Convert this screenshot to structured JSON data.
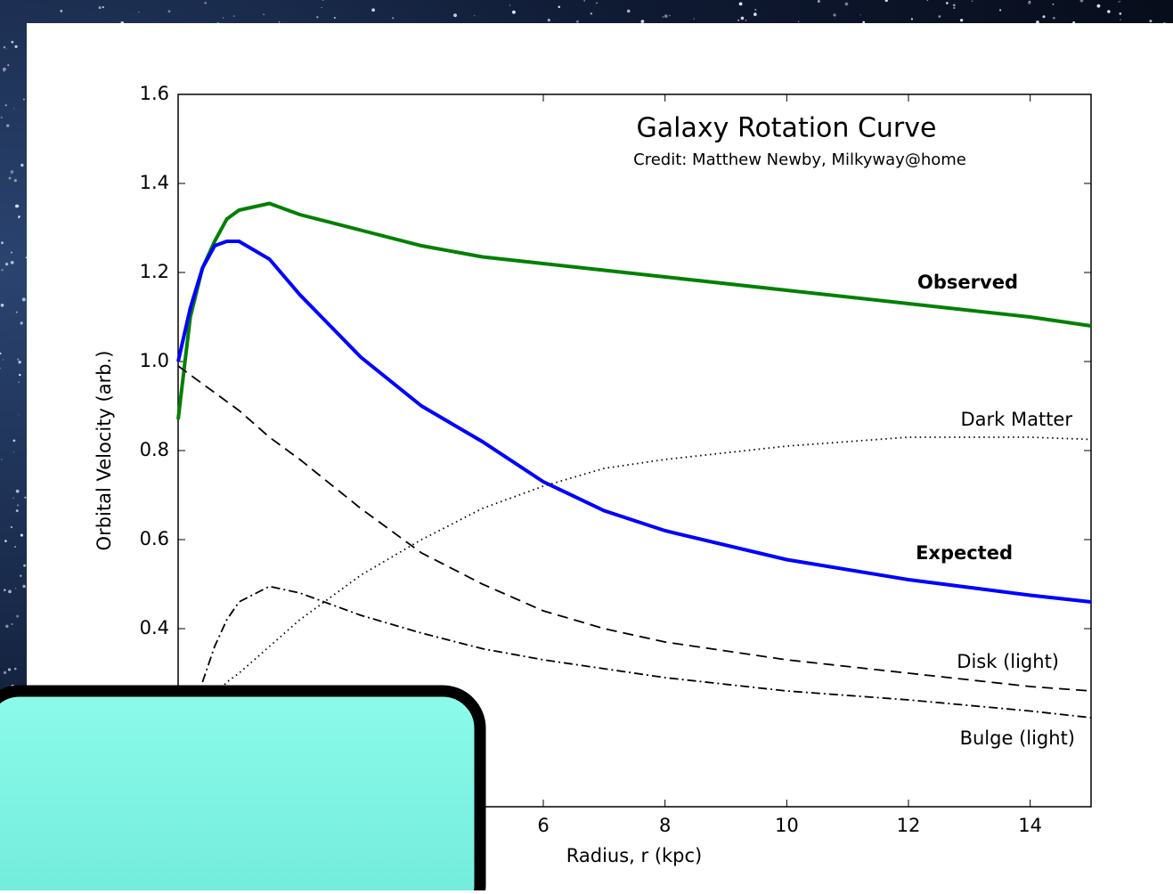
{
  "chart_data": {
    "type": "line",
    "title": "Galaxy Rotation Curve",
    "subtitle": "Credit:  Matthew Newby, Milkyway@home",
    "x_label": "Radius, r (kpc)",
    "y_label": "Orbital Velocity (arb.)",
    "x": [
      0,
      0.2,
      0.4,
      0.6,
      0.8,
      1,
      1.5,
      2,
      3,
      4,
      5,
      6,
      7,
      8,
      10,
      12,
      14,
      15
    ],
    "series": [
      {
        "name": "Observed",
        "color": "#008000",
        "linestyle": "solid",
        "bold": true,
        "values": [
          0.87,
          1.1,
          1.21,
          1.27,
          1.32,
          1.34,
          1.355,
          1.33,
          1.295,
          1.26,
          1.235,
          1.22,
          1.205,
          1.19,
          1.16,
          1.13,
          1.1,
          1.08
        ]
      },
      {
        "name": "Expected",
        "color": "#0000ff",
        "linestyle": "solid",
        "bold": true,
        "values": [
          1.0,
          1.12,
          1.21,
          1.26,
          1.27,
          1.27,
          1.23,
          1.15,
          1.01,
          0.9,
          0.82,
          0.73,
          0.665,
          0.62,
          0.555,
          0.51,
          0.475,
          0.46
        ]
      },
      {
        "name": "Dark Matter",
        "color": "#000000",
        "linestyle": "dotted",
        "bold": false,
        "values": [
          null,
          null,
          null,
          0.25,
          0.28,
          0.3,
          0.36,
          0.42,
          0.52,
          0.6,
          0.67,
          0.72,
          0.76,
          0.78,
          0.81,
          0.83,
          0.83,
          0.825
        ]
      },
      {
        "name": "Disk (light)",
        "color": "#000000",
        "linestyle": "dashed",
        "bold": false,
        "values": [
          0.99,
          0.97,
          0.95,
          0.93,
          0.91,
          0.89,
          0.83,
          0.78,
          0.67,
          0.57,
          0.5,
          0.44,
          0.4,
          0.37,
          0.33,
          0.3,
          0.27,
          0.26
        ]
      },
      {
        "name": "Bulge (light)",
        "color": "#000000",
        "linestyle": "dashdot",
        "bold": false,
        "values": [
          null,
          null,
          0.28,
          0.36,
          0.42,
          0.46,
          0.495,
          0.48,
          0.43,
          0.39,
          0.355,
          0.33,
          0.31,
          0.29,
          0.26,
          0.24,
          0.215,
          0.2
        ]
      }
    ],
    "xlim": [
      0,
      15
    ],
    "ylim": [
      0,
      1.6
    ],
    "xticks": [
      6,
      8,
      10,
      12,
      14
    ],
    "yticks": [
      {
        "value": 0.4,
        "label": "0.4"
      },
      {
        "value": 0.6,
        "label": "0.6"
      },
      {
        "value": 0.8,
        "label": "0.8"
      },
      {
        "value": 1.0,
        "label": "1.0"
      },
      {
        "value": 1.2,
        "label": "1.2"
      },
      {
        "value": 1.4,
        "label": "1.4"
      },
      {
        "value": 1.6,
        "label": "1.6"
      }
    ],
    "grid": false
  }
}
